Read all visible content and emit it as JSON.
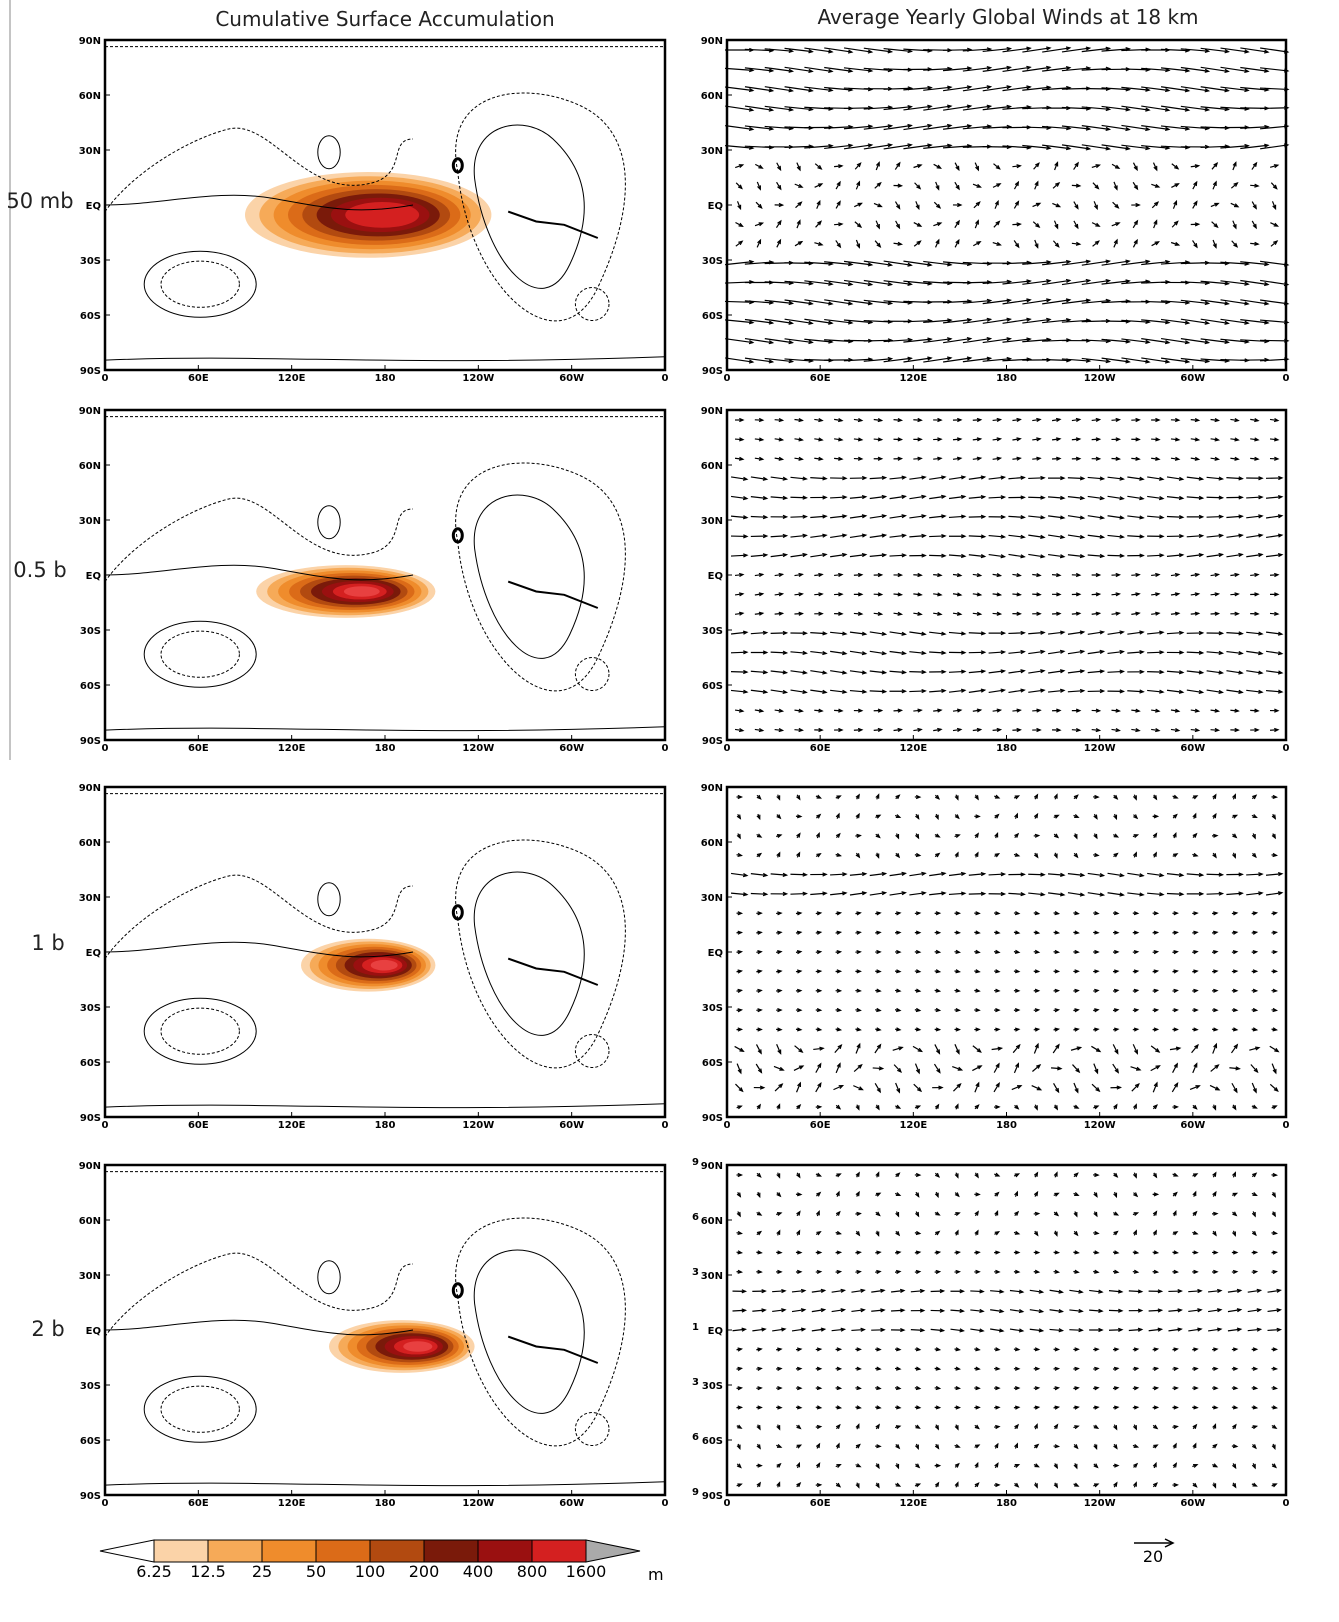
{
  "titles": {
    "left": "Cumulative Surface Accumulation",
    "right": "Average Yearly Global Winds at 18 km"
  },
  "rows": [
    "50 mb",
    "0.5 b",
    "1 b",
    "2 b"
  ],
  "lat_ticks": [
    "90N",
    "60N",
    "30N",
    "EQ",
    "30S",
    "60S",
    "90S"
  ],
  "lon_ticks": [
    "0",
    "60E",
    "120E",
    "180",
    "120W",
    "60W",
    "0"
  ],
  "extra_wind_labels": [
    "9",
    "6",
    "3",
    "1",
    "3",
    "6",
    "9"
  ],
  "colorbar": {
    "levels": [
      "6.25",
      "12.5",
      "25",
      "50",
      "100",
      "200",
      "400",
      "800",
      "1600"
    ],
    "unit": "m"
  },
  "wind_reference": "20"
}
